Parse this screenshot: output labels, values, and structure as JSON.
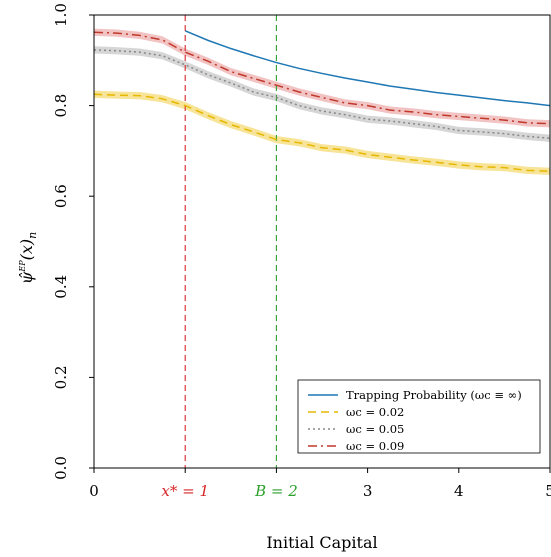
{
  "chart_data": {
    "type": "line",
    "xlabel": "Initial Capital",
    "ylabel": "ψ̂^EP(x)n",
    "xlim": [
      0,
      5
    ],
    "ylim": [
      0,
      1
    ],
    "x_ticks": [
      {
        "value": 0,
        "label": "0",
        "color": "#000000"
      },
      {
        "value": 1,
        "label": "x* = 1",
        "color": "#d62728"
      },
      {
        "value": 2,
        "label": "B = 2",
        "color": "#2ca02c"
      },
      {
        "value": 3,
        "label": "3",
        "color": "#000000"
      },
      {
        "value": 4,
        "label": "4",
        "color": "#000000"
      },
      {
        "value": 5,
        "label": "5",
        "color": "#000000"
      }
    ],
    "y_ticks": [
      "0.0",
      "0.2",
      "0.4",
      "0.6",
      "0.8",
      "1.0"
    ],
    "y_tick_values": [
      0,
      0.2,
      0.4,
      0.6,
      0.8,
      1.0
    ],
    "vlines": [
      {
        "x": 1,
        "color": "#d62728",
        "style": "dashed"
      },
      {
        "x": 2,
        "color": "#2ca02c",
        "style": "dashed"
      }
    ],
    "legend_position": "bottom-right",
    "band_halfwidth": 0.008,
    "series": [
      {
        "name": "Trapping Probability (ωc ≡ ∞)",
        "color": "#1f77b4",
        "style": "solid",
        "band": false,
        "x": [
          1.0,
          1.25,
          1.5,
          1.75,
          2.0,
          2.25,
          2.5,
          2.75,
          3.0,
          3.25,
          3.5,
          3.75,
          4.0,
          4.25,
          4.5,
          4.75,
          5.0
        ],
        "y": [
          0.965,
          0.944,
          0.926,
          0.91,
          0.895,
          0.882,
          0.871,
          0.861,
          0.852,
          0.843,
          0.836,
          0.829,
          0.823,
          0.817,
          0.811,
          0.806,
          0.8
        ]
      },
      {
        "name": "ωc = 0.02",
        "color": "#e6b800",
        "band_color": "#f6df86",
        "style": "dashed",
        "band": true,
        "x": [
          0,
          0.25,
          0.5,
          0.75,
          1.0,
          1.25,
          1.5,
          1.75,
          2.0,
          2.25,
          2.5,
          2.75,
          3.0,
          3.25,
          3.5,
          3.75,
          4.0,
          4.25,
          4.5,
          4.75,
          5.0
        ],
        "y": [
          0.825,
          0.823,
          0.822,
          0.815,
          0.8,
          0.778,
          0.758,
          0.742,
          0.725,
          0.718,
          0.707,
          0.702,
          0.692,
          0.686,
          0.68,
          0.675,
          0.669,
          0.665,
          0.663,
          0.657,
          0.655
        ]
      },
      {
        "name": "ωc = 0.05",
        "color": "#888888",
        "band_color": "#cfcfcf",
        "style": "dotted",
        "band": true,
        "x": [
          0,
          0.25,
          0.5,
          0.75,
          1.0,
          1.25,
          1.5,
          1.75,
          2.0,
          2.25,
          2.5,
          2.75,
          3.0,
          3.25,
          3.5,
          3.75,
          4.0,
          4.25,
          4.5,
          4.75,
          5.0
        ],
        "y": [
          0.923,
          0.921,
          0.918,
          0.91,
          0.89,
          0.868,
          0.85,
          0.83,
          0.818,
          0.8,
          0.788,
          0.78,
          0.77,
          0.766,
          0.76,
          0.754,
          0.745,
          0.742,
          0.738,
          0.732,
          0.728
        ]
      },
      {
        "name": "ωc = 0.09",
        "color": "#c0392b",
        "band_color": "#f0b8b8",
        "style": "dashdot",
        "band": true,
        "x": [
          0,
          0.25,
          0.5,
          0.75,
          1.0,
          1.25,
          1.5,
          1.75,
          2.0,
          2.25,
          2.5,
          2.75,
          3.0,
          3.25,
          3.5,
          3.75,
          4.0,
          4.25,
          4.5,
          4.75,
          5.0
        ],
        "y": [
          0.962,
          0.96,
          0.955,
          0.945,
          0.918,
          0.898,
          0.875,
          0.86,
          0.845,
          0.83,
          0.818,
          0.806,
          0.8,
          0.79,
          0.786,
          0.78,
          0.776,
          0.772,
          0.768,
          0.762,
          0.76
        ]
      }
    ]
  }
}
